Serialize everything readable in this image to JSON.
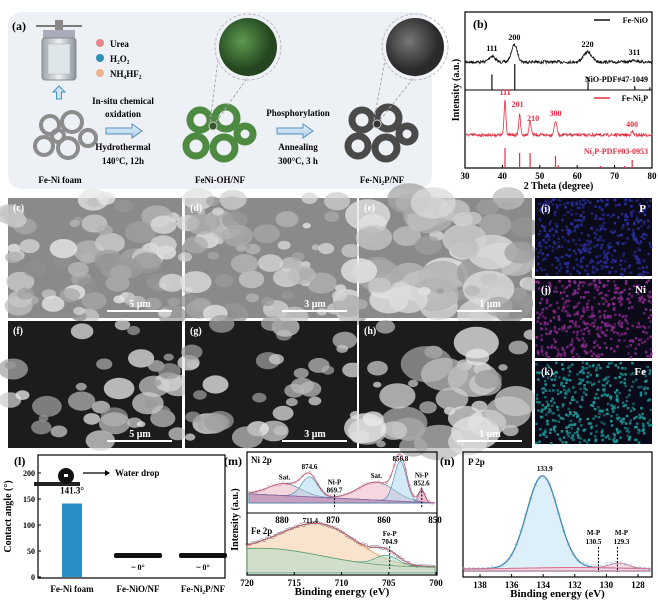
{
  "panel_a": {
    "label": "(a)",
    "legend": [
      {
        "text": "Urea",
        "color": "#e8848c"
      },
      {
        "text": "H₂O₂",
        "color": "#2e8fb5"
      },
      {
        "text": "NH₄HF₂",
        "color": "#f2b48e"
      }
    ],
    "step1": {
      "line1": "In-situ chemical",
      "line2": "oxidation",
      "line3": "Hydrothermal",
      "line4": "140°C, 12h"
    },
    "step2": {
      "line1": "Phosphorylation",
      "line2": "Annealing",
      "line3": "300°C, 3 h"
    },
    "materials": [
      "Fe-Ni foam",
      "FeNi-OH/NF",
      "Fe-Ni₂P/NF"
    ],
    "icons": [
      "autoclave-icon",
      "arrow-up-icon",
      "arrow-right-icon",
      "foam-structure-icon",
      "nanoflower-sphere-icon"
    ]
  },
  "sem": [
    {
      "label": "(c)",
      "scale": "5 μm",
      "bg": "light"
    },
    {
      "label": "(d)",
      "scale": "3 μm",
      "bg": "light"
    },
    {
      "label": "(e)",
      "scale": "1 μm",
      "bg": "light"
    },
    {
      "label": "(f)",
      "scale": "5 μm",
      "bg": "dark"
    },
    {
      "label": "(g)",
      "scale": "3 μm",
      "bg": "dark"
    },
    {
      "label": "(h)",
      "scale": "1 μm",
      "bg": "dark"
    }
  ],
  "eds": [
    {
      "label": "(i)",
      "element": "P",
      "color": "#2a2f9a"
    },
    {
      "label": "(j)",
      "element": "Ni",
      "color": "#8a2a8c"
    },
    {
      "label": "(k)",
      "element": "Fe",
      "color": "#1f9a98"
    }
  ],
  "chart_data": [
    {
      "panel": "(b)",
      "type": "line",
      "xlabel": "2 Theta (degree)",
      "ylabel": "Intensity (a.u.)",
      "xlim": [
        30,
        80
      ],
      "xticks": [
        30,
        40,
        50,
        60,
        70,
        80
      ],
      "series": [
        {
          "name": "Fe-NiO",
          "color": "#111111",
          "peaks": [
            {
              "x": 37.2,
              "label": "111"
            },
            {
              "x": 43.2,
              "label": "200"
            },
            {
              "x": 62.8,
              "label": "220"
            },
            {
              "x": 75.3,
              "label": "311"
            }
          ],
          "reference": {
            "name": "NiO-PDF#47-1049",
            "positions": [
              37.2,
              43.3,
              62.9,
              75.4,
              79.4
            ],
            "rel_intensity": [
              0.6,
              1.0,
              0.5,
              0.15,
              0.1
            ]
          }
        },
        {
          "name": "Fe-Ni₂P",
          "color": "#e03040",
          "peaks": [
            {
              "x": 40.7,
              "label": "111"
            },
            {
              "x": 44.6,
              "label": "201"
            },
            {
              "x": 47.4,
              "label": "210"
            },
            {
              "x": 54.2,
              "label": "300"
            },
            {
              "x": 74.7,
              "label": "400"
            }
          ],
          "reference": {
            "name": "Ni₂P-PDF#03-0953",
            "positions": [
              40.7,
              44.6,
              47.4,
              54.2,
              54.9,
              66.2,
              72.7,
              74.7
            ],
            "rel_intensity": [
              1.0,
              0.75,
              0.75,
              0.6,
              0.15,
              0.1,
              0.1,
              0.4
            ]
          }
        }
      ]
    },
    {
      "panel": "(l)",
      "type": "bar",
      "ylabel": "Contact angle (°)",
      "ylim": [
        0,
        200
      ],
      "yticks": [
        0,
        50,
        100,
        150,
        200
      ],
      "categories": [
        "Fe-Ni foam",
        "Fe-NiO/NF",
        "Fe-Ni₂P/NF"
      ],
      "values": [
        141.3,
        0,
        0
      ],
      "value_labels": [
        "141.3°",
        "~ 0°",
        "~ 0°"
      ],
      "bar_color": "#2b8fc7",
      "annotation": "Water drop"
    },
    {
      "panel": "(m)",
      "type": "line",
      "xlabel": "Binding energy (eV)",
      "ylabel": "Intensity (a.u.)",
      "subplots": [
        {
          "title": "Ni 2p",
          "xlim": [
            887,
            849.6
          ],
          "xticks": [
            880,
            870,
            860,
            850
          ],
          "peaks": [
            {
              "x": 879.5,
              "label": "Sat."
            },
            {
              "x": 874.6,
              "label": "874.6"
            },
            {
              "x": 869.7,
              "label": "Ni-P\n869.7"
            },
            {
              "x": 861.5,
              "label": "Sat."
            },
            {
              "x": 856.8,
              "label": "856.8"
            },
            {
              "x": 852.6,
              "label": "Ni-P\n852.6"
            }
          ]
        },
        {
          "title": "Fe 2p",
          "xlim": [
            720,
            700
          ],
          "xticks": [
            720,
            715,
            710,
            705,
            700
          ],
          "peaks": [
            {
              "x": 711.4,
              "label": "711.4"
            },
            {
              "x": 704.9,
              "label": "Fe-P\n704.9"
            }
          ]
        }
      ]
    },
    {
      "panel": "(n)",
      "type": "line",
      "title": "P 2p",
      "xlabel": "Binding energy (eV)",
      "xlim": [
        139.1,
        127.1
      ],
      "xticks": [
        138,
        136,
        134,
        132,
        130,
        128
      ],
      "peaks": [
        {
          "x": 133.9,
          "label": "133.9"
        },
        {
          "x": 130.5,
          "label": "M-P\n130.5"
        },
        {
          "x": 129.3,
          "label": "M-P\n129.3"
        }
      ]
    }
  ]
}
